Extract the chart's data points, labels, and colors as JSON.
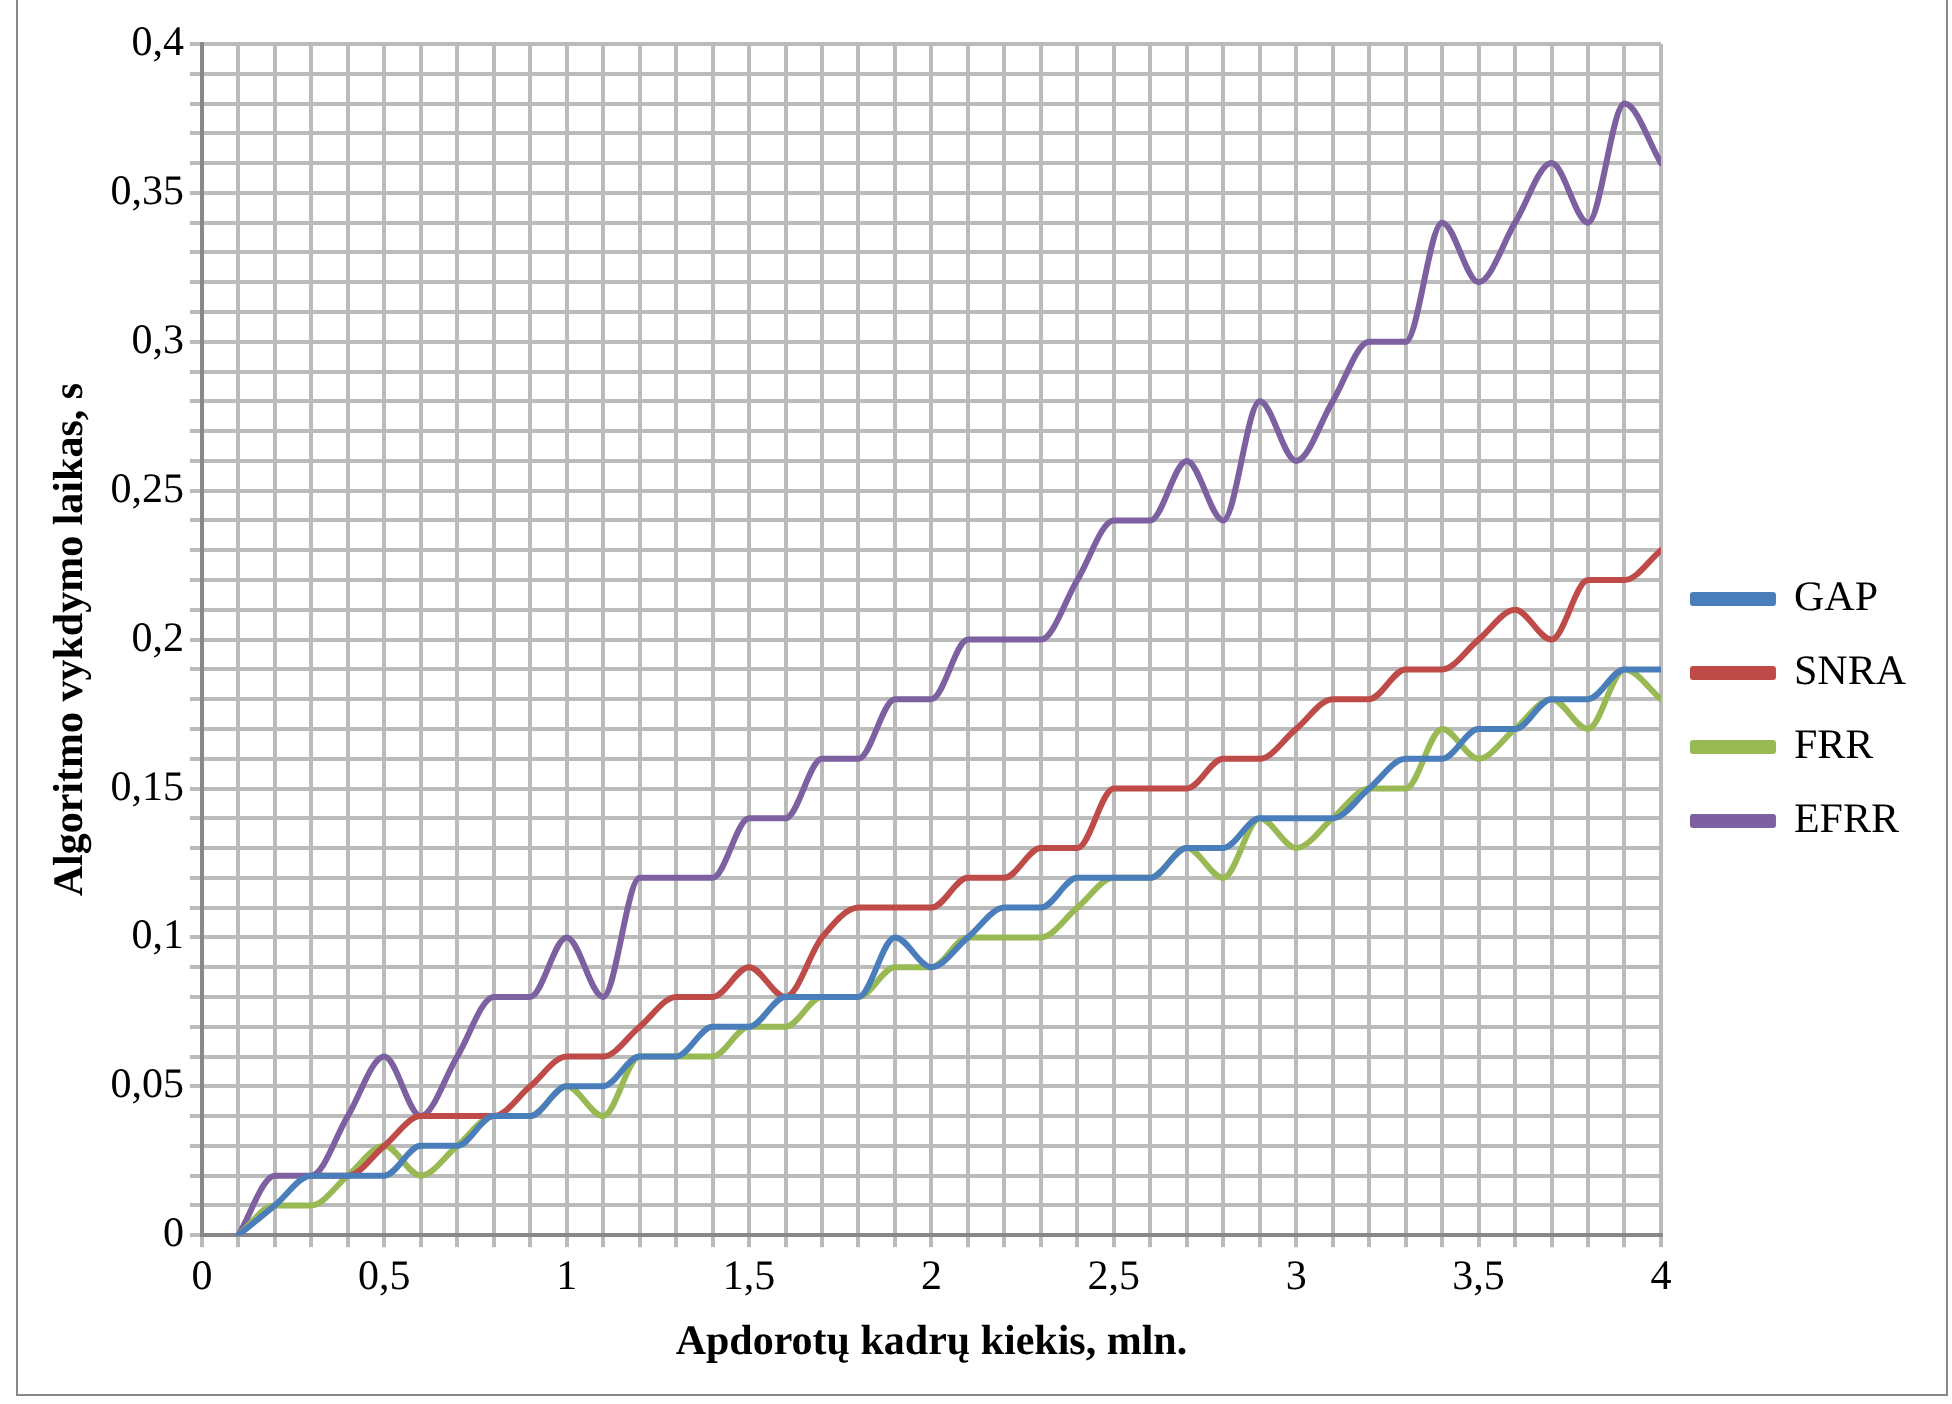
{
  "chart_data": {
    "type": "line",
    "xlabel": "Apdorotų kadrų kiekis, mln.",
    "ylabel": "Algoritmo vykdymo laikas, s",
    "x": [
      0.1,
      0.2,
      0.3,
      0.4,
      0.5,
      0.6,
      0.7,
      0.8,
      0.9,
      1.0,
      1.1,
      1.2,
      1.3,
      1.4,
      1.5,
      1.6,
      1.7,
      1.8,
      1.9,
      2.0,
      2.1,
      2.2,
      2.3,
      2.4,
      2.5,
      2.6,
      2.7,
      2.8,
      2.9,
      3.0,
      3.1,
      3.2,
      3.3,
      3.4,
      3.5,
      3.6,
      3.7,
      3.8,
      3.9,
      4.0
    ],
    "series": [
      {
        "name": "GAP",
        "color": "#4a7ebb",
        "values": [
          0,
          0.01,
          0.02,
          0.02,
          0.02,
          0.03,
          0.03,
          0.04,
          0.04,
          0.05,
          0.05,
          0.06,
          0.06,
          0.07,
          0.07,
          0.08,
          0.08,
          0.08,
          0.1,
          0.09,
          0.1,
          0.11,
          0.11,
          0.12,
          0.12,
          0.12,
          0.13,
          0.13,
          0.14,
          0.14,
          0.14,
          0.15,
          0.16,
          0.16,
          0.17,
          0.17,
          0.18,
          0.18,
          0.19,
          0.19
        ]
      },
      {
        "name": "SNRA",
        "color": "#be4b48",
        "values": [
          null,
          null,
          0.02,
          0.02,
          0.03,
          0.04,
          0.04,
          0.04,
          0.05,
          0.06,
          0.06,
          0.07,
          0.08,
          0.08,
          0.09,
          0.08,
          0.1,
          0.11,
          0.11,
          0.11,
          0.12,
          0.12,
          0.13,
          0.13,
          0.15,
          0.15,
          0.15,
          0.16,
          0.16,
          0.17,
          0.18,
          0.18,
          0.19,
          0.19,
          0.2,
          0.21,
          0.2,
          0.22,
          0.22,
          0.23
        ]
      },
      {
        "name": "FRR",
        "color": "#98b954",
        "values": [
          0,
          0.01,
          0.01,
          0.02,
          0.03,
          0.02,
          0.03,
          0.04,
          0.04,
          0.05,
          0.04,
          0.06,
          0.06,
          0.06,
          0.07,
          0.07,
          0.08,
          0.08,
          0.09,
          0.09,
          0.1,
          0.1,
          0.1,
          0.11,
          0.12,
          0.12,
          0.13,
          0.12,
          0.14,
          0.13,
          0.14,
          0.15,
          0.15,
          0.17,
          0.16,
          0.17,
          0.18,
          0.17,
          0.19,
          0.18
        ]
      },
      {
        "name": "EFRR",
        "color": "#7d60a0",
        "values": [
          0,
          0.02,
          0.02,
          0.04,
          0.06,
          0.04,
          0.06,
          0.08,
          0.08,
          0.1,
          0.08,
          0.12,
          0.12,
          0.12,
          0.14,
          0.14,
          0.16,
          0.16,
          0.18,
          0.18,
          0.2,
          0.2,
          0.2,
          0.22,
          0.24,
          0.24,
          0.26,
          0.24,
          0.28,
          0.26,
          0.28,
          0.3,
          0.3,
          0.34,
          0.32,
          0.34,
          0.36,
          0.34,
          0.38,
          0.36
        ]
      }
    ],
    "xlim": [
      0,
      4
    ],
    "ylim": [
      0,
      0.4
    ],
    "xticks": [
      0,
      {
        "value": 0.1,
        "label": null
      },
      {
        "value": 0.2,
        "label": null
      },
      {
        "value": 0.3,
        "label": null
      },
      {
        "value": 0.4,
        "label": null
      },
      {
        "value": 0.5,
        "label": "0,5"
      },
      {
        "value": 0.6,
        "label": null
      },
      {
        "value": 0.7,
        "label": null
      },
      {
        "value": 0.8,
        "label": null
      },
      {
        "value": 0.9,
        "label": null
      },
      1,
      {
        "value": 1.1,
        "label": null
      },
      {
        "value": 1.2,
        "label": null
      },
      {
        "value": 1.3,
        "label": null
      },
      {
        "value": 1.4,
        "label": null
      },
      {
        "value": 1.5,
        "label": "1,5"
      },
      {
        "value": 1.6,
        "label": null
      },
      {
        "value": 1.7,
        "label": null
      },
      {
        "value": 1.8,
        "label": null
      },
      {
        "value": 1.9,
        "label": null
      },
      2,
      {
        "value": 2.1,
        "label": null
      },
      {
        "value": 2.2,
        "label": null
      },
      {
        "value": 2.3,
        "label": null
      },
      {
        "value": 2.4,
        "label": null
      },
      {
        "value": 2.5,
        "label": "2,5"
      },
      {
        "value": 2.6,
        "label": null
      },
      {
        "value": 2.7,
        "label": null
      },
      {
        "value": 2.8,
        "label": null
      },
      {
        "value": 2.9,
        "label": null
      },
      3,
      {
        "value": 3.1,
        "label": null
      },
      {
        "value": 3.2,
        "label": null
      },
      {
        "value": 3.3,
        "label": null
      },
      {
        "value": 3.4,
        "label": null
      },
      {
        "value": 3.5,
        "label": "3,5"
      },
      {
        "value": 3.6,
        "label": null
      },
      {
        "value": 3.7,
        "label": null
      },
      {
        "value": 3.8,
        "label": null
      },
      {
        "value": 3.9,
        "label": null
      },
      4
    ],
    "yticks": [
      0,
      {
        "value": 0.01,
        "label": null
      },
      {
        "value": 0.02,
        "label": null
      },
      {
        "value": 0.03,
        "label": null
      },
      {
        "value": 0.04,
        "label": null
      },
      {
        "value": 0.05,
        "label": "0,05"
      },
      {
        "value": 0.06,
        "label": null
      },
      {
        "value": 0.07,
        "label": null
      },
      {
        "value": 0.08,
        "label": null
      },
      {
        "value": 0.09,
        "label": null
      },
      {
        "value": 0.1,
        "label": "0,1"
      },
      {
        "value": 0.11,
        "label": null
      },
      {
        "value": 0.12,
        "label": null
      },
      {
        "value": 0.13,
        "label": null
      },
      {
        "value": 0.14,
        "label": null
      },
      {
        "value": 0.15,
        "label": "0,15"
      },
      {
        "value": 0.16,
        "label": null
      },
      {
        "value": 0.17,
        "label": null
      },
      {
        "value": 0.18,
        "label": null
      },
      {
        "value": 0.19,
        "label": null
      },
      {
        "value": 0.2,
        "label": "0,2"
      },
      {
        "value": 0.21,
        "label": null
      },
      {
        "value": 0.22,
        "label": null
      },
      {
        "value": 0.23,
        "label": null
      },
      {
        "value": 0.24,
        "label": null
      },
      {
        "value": 0.25,
        "label": "0,25"
      },
      {
        "value": 0.26,
        "label": null
      },
      {
        "value": 0.27,
        "label": null
      },
      {
        "value": 0.28,
        "label": null
      },
      {
        "value": 0.29,
        "label": null
      },
      {
        "value": 0.3,
        "label": "0,3"
      },
      {
        "value": 0.31,
        "label": null
      },
      {
        "value": 0.32,
        "label": null
      },
      {
        "value": 0.33,
        "label": null
      },
      {
        "value": 0.34,
        "label": null
      },
      {
        "value": 0.35,
        "label": "0,35"
      },
      {
        "value": 0.36,
        "label": null
      },
      {
        "value": 0.37,
        "label": null
      },
      {
        "value": 0.38,
        "label": null
      },
      {
        "value": 0.39,
        "label": null
      },
      {
        "value": 0.4,
        "label": "0,4"
      }
    ],
    "grid": true,
    "legend": "right",
    "marker": "none",
    "line_style": "solid"
  }
}
